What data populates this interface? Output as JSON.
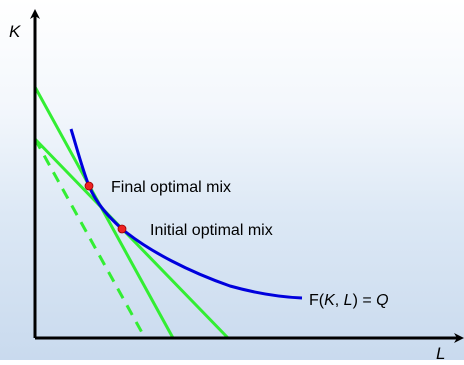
{
  "axes": {
    "y_label": "K",
    "x_label": "L"
  },
  "curve": {
    "label_prefix": "F(",
    "label_var1": "K",
    "label_sep": ", ",
    "label_var2": "L",
    "label_mid": ") = ",
    "label_var3": "Q",
    "color": "#0000dd"
  },
  "points": {
    "final_label": "Final optimal mix",
    "initial_label": "Initial optimal mix",
    "color": "#ee2222"
  },
  "lines": {
    "color": "#33ee33"
  }
}
